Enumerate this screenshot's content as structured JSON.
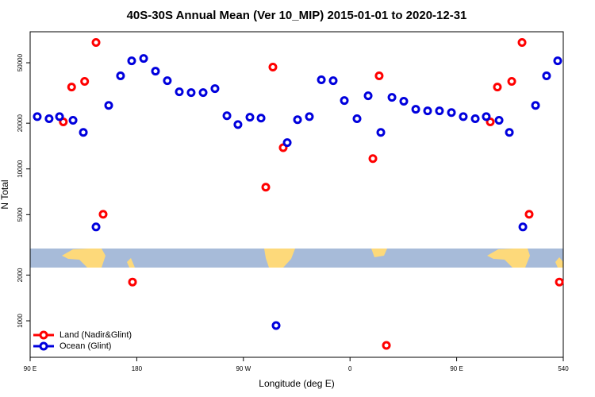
{
  "chart_data": {
    "type": "scatter",
    "title": "40S-30S Annual Mean (Ver 10_MIP)   2015-01-01 to 2020-12-31",
    "x_label": "Longitude (deg E)",
    "y_label": "N Total",
    "xlim": [
      90,
      540
    ],
    "xticks": [
      {
        "value": 90,
        "label": "90 E"
      },
      180,
      {
        "value": 270,
        "label": "90 W"
      },
      {
        "value": 360,
        "label": "0"
      },
      {
        "value": 450,
        "label": "90 E"
      },
      540
    ],
    "ylim": [
      575,
      80000
    ],
    "yticks": [
      1000,
      2000,
      5000,
      10000,
      20000,
      50000
    ],
    "log_y": true,
    "legend": "lower left",
    "series": [
      {
        "name": "Land (Nadir&Glint)",
        "color": "#ff0000",
        "x": [
          118,
          125,
          136,
          145.6,
          151.6,
          176.4,
          288.9,
          294.9,
          303.6,
          379.3,
          384.6,
          390.7,
          478.4,
          484.4,
          496.5,
          505.2,
          511.2,
          536.7
        ],
        "values": [
          20400,
          34600,
          37700,
          68000,
          5030,
          1800,
          7580,
          46800,
          13800,
          11700,
          41000,
          689,
          20400,
          34600,
          37700,
          68000,
          5030,
          1800
        ]
      },
      {
        "name": "Ocean (Glint)",
        "color": "#0000dd",
        "x": [
          96,
          106,
          114.8,
          126.2,
          134.9,
          145.6,
          156.3,
          166.3,
          175.7,
          185.8,
          195.8,
          205.8,
          215.9,
          225.9,
          236,
          246,
          256.1,
          265.4,
          275.5,
          284.9,
          297.6,
          307,
          315.7,
          325.7,
          335.8,
          345.8,
          355.2,
          365.9,
          375.3,
          386,
          395.4,
          405.4,
          415.5,
          425.5,
          435.5,
          445.6,
          455.6,
          465.7,
          475,
          485.8,
          494.5,
          505.9,
          516.6,
          525.9,
          535.3
        ],
        "values": [
          22100,
          21400,
          22100,
          20900,
          17400,
          4150,
          26200,
          41000,
          51500,
          53400,
          44000,
          38100,
          32200,
          31800,
          31800,
          33800,
          22400,
          19600,
          21900,
          21600,
          931,
          14900,
          21100,
          22100,
          38600,
          38100,
          28200,
          21400,
          30300,
          17400,
          29600,
          27900,
          24700,
          24100,
          24100,
          23500,
          22100,
          21400,
          22100,
          20900,
          17400,
          4150,
          26200,
          41000,
          51500
        ]
      }
    ]
  }
}
